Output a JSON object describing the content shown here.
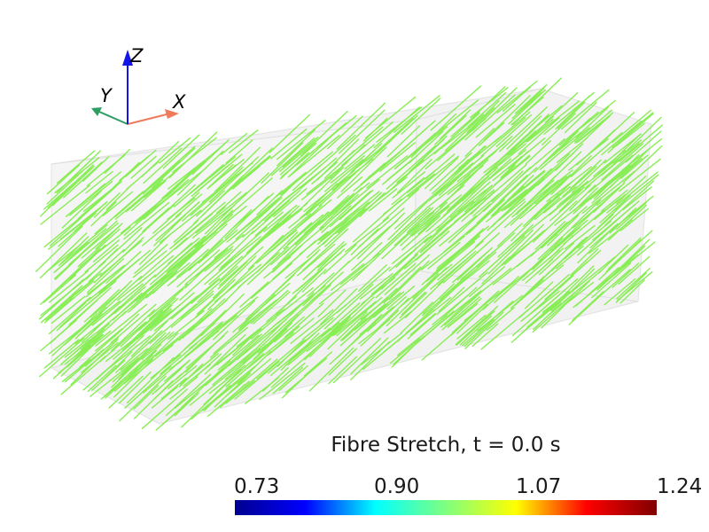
{
  "scene": {
    "fibre_color": "#88ee55",
    "box_color": "#e6e6e6"
  },
  "axes": {
    "x_label": "X",
    "y_label": "Y",
    "z_label": "Z",
    "x_color": "#f07b5a",
    "y_color": "#2e9e63",
    "z_color": "#1414e6"
  },
  "colorbar": {
    "title": "Fibre Stretch, t = 0.0 s",
    "ticks": [
      "0.73",
      "0.90",
      "1.07",
      "1.24"
    ],
    "colormap": [
      "#00008f",
      "#0000ff",
      "#00ffff",
      "#7fff7f",
      "#ffff00",
      "#ff0000",
      "#800000"
    ]
  }
}
